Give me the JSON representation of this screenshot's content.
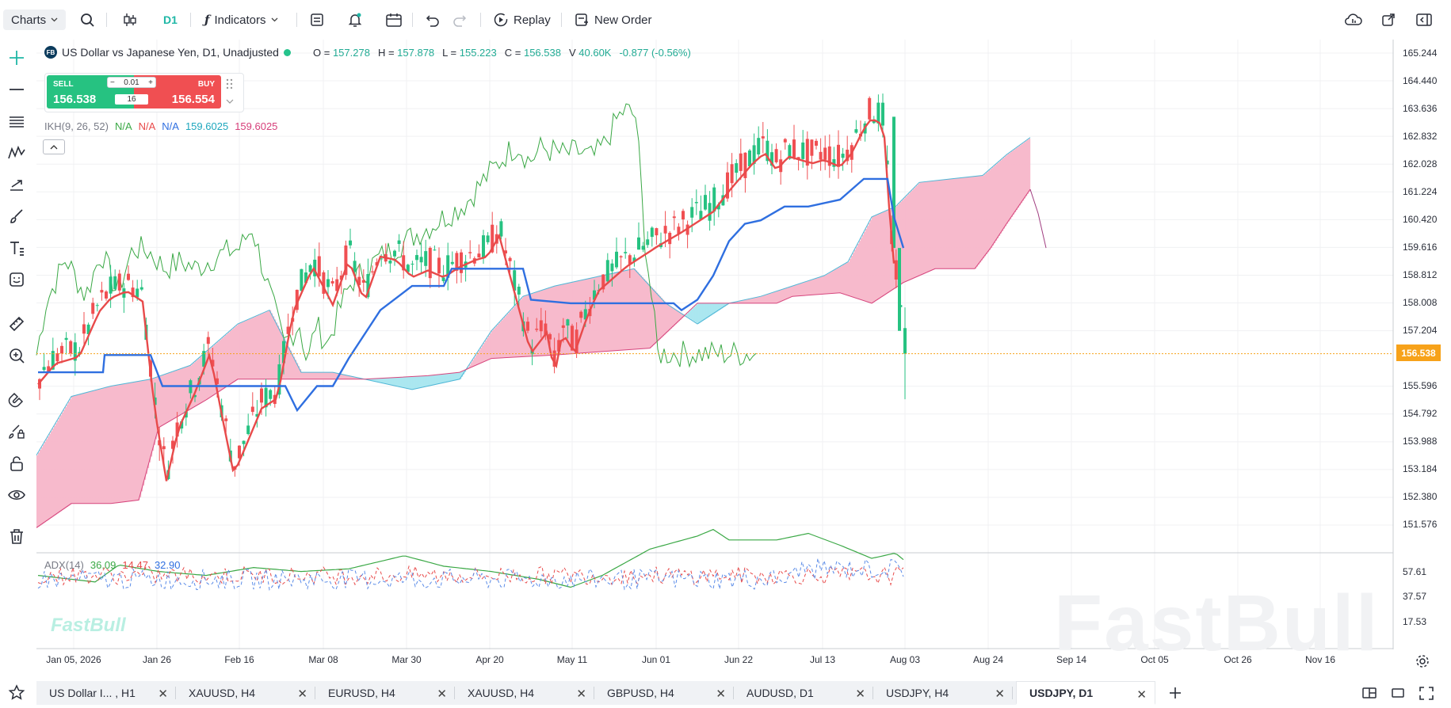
{
  "toolbar": {
    "charts_label": "Charts",
    "interval_label": "D1",
    "indicators_label": "Indicators",
    "replay_label": "Replay",
    "new_order_label": "New Order"
  },
  "symbol": {
    "badge": "FB",
    "title": "US Dollar vs Japanese Yen, D1, Unadjusted",
    "o_label": "O =",
    "o_value": "157.278",
    "h_label": "H =",
    "h_value": "157.878",
    "l_label": "L =",
    "l_value": "155.223",
    "c_label": "C =",
    "c_value": "156.538",
    "v_label": "V",
    "v_value": "40.60K",
    "change": "-0.877 (-0.56%)"
  },
  "trade": {
    "sell_label": "SELL",
    "buy_label": "BUY",
    "sell_price": "156.538",
    "buy_price": "156.554",
    "quantity": "0.01",
    "leverage": "16",
    "minus": "−",
    "plus": "+"
  },
  "ichimoku": {
    "name": "IKH(9, 26, 52)",
    "v1": "N/A",
    "v2": "N/A",
    "v3": "N/A",
    "v4": "159.6025",
    "v5": "159.6025"
  },
  "adx": {
    "name": "ADX(14)",
    "v1": "36.09",
    "v2": "14.47",
    "v3": "32.90"
  },
  "price_axis": {
    "ticks": [
      "165.244",
      "164.440",
      "163.636",
      "162.832",
      "162.028",
      "161.224",
      "160.420",
      "159.616",
      "158.812",
      "158.008",
      "157.204",
      "155.596",
      "154.792",
      "153.988",
      "153.184",
      "152.380",
      "151.576"
    ],
    "last_price": "156.538",
    "adx_ticks": [
      "57.61",
      "37.57",
      "17.53"
    ]
  },
  "time_axis": {
    "labels": [
      "Jan 05, 2026",
      "Jan 26",
      "Feb 16",
      "Mar 08",
      "Mar 30",
      "Apr 20",
      "May 11",
      "Jun 01",
      "Jun 22",
      "Jul 13",
      "Aug 03",
      "Aug 24",
      "Sep 14",
      "Oct 05",
      "Oct 26",
      "Nov 16"
    ]
  },
  "tabs": [
    {
      "label": "US Dollar I... , H1"
    },
    {
      "label": "XAUUSD, H4"
    },
    {
      "label": "EURUSD, H4"
    },
    {
      "label": "XAUUSD, H4"
    },
    {
      "label": "GBPUSD, H4"
    },
    {
      "label": "AUDUSD, D1"
    },
    {
      "label": "USDJPY, H4"
    },
    {
      "label": "USDJPY, D1"
    }
  ],
  "watermark": "FastBull",
  "colors": {
    "up": "#26c281",
    "down": "#f04f52",
    "tenkan": "#e84a4a",
    "kijun": "#2f6fe0",
    "chikou": "#3aa845",
    "cloud_bull": "#f7b6c9",
    "cloud_bear": "#a6e6ef",
    "accent": "#1fb7a6",
    "last_price": "#f7a21a"
  }
}
